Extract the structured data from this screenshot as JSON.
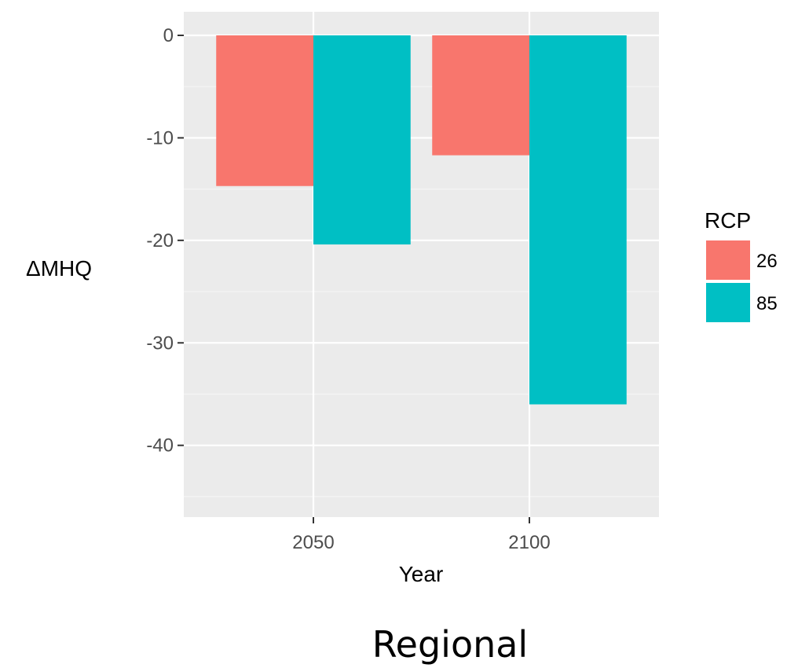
{
  "chart_data": {
    "type": "bar",
    "categories": [
      "2050",
      "2100"
    ],
    "series": [
      {
        "name": "26",
        "color": "#F8766D",
        "values": [
          -14.7,
          -11.7
        ]
      },
      {
        "name": "85",
        "color": "#00BFC4",
        "values": [
          -20.4,
          -36.0
        ]
      }
    ],
    "xlabel": "Year",
    "ylabel": "ΔMHQ",
    "ylim": [
      -47,
      2.3
    ],
    "yticks": [
      0,
      -10,
      -20,
      -30,
      -40
    ],
    "ytick_labels": [
      "0",
      "-10",
      "-20",
      "-30",
      "-40"
    ],
    "legend_title": "RCP",
    "legend_position": "right",
    "grid": true,
    "panel_background": "#EBEBEB",
    "grid_color": "#FFFFFF"
  },
  "caption": "Regional"
}
